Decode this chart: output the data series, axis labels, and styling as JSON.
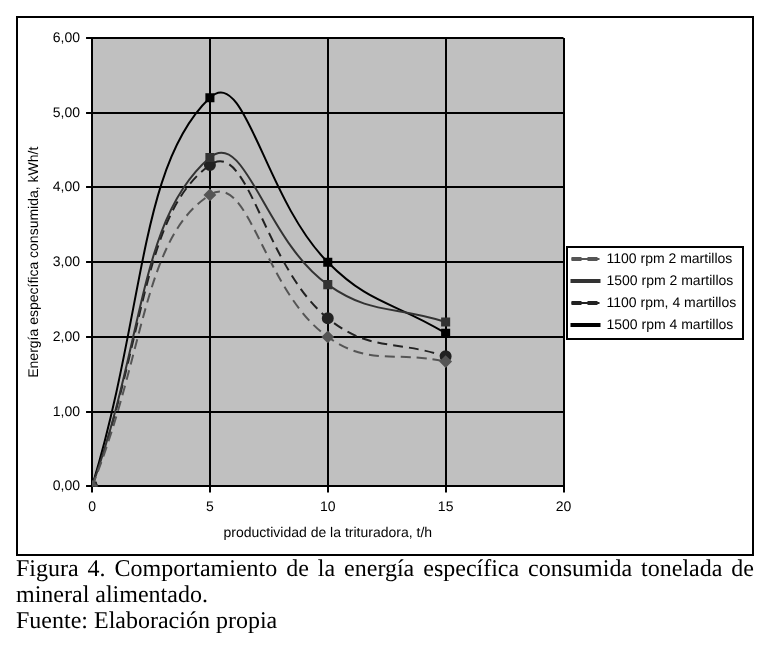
{
  "chart_data": {
    "type": "line",
    "title": "Figura 4. Comportamiento de la energía específica consumida tonelada de mineral alimentado.",
    "annotations": [
      "Fuente: Elaboración propia"
    ],
    "xlabel": "productividad de la trituradora, t/h",
    "ylabel": "Energía específica consumida, kWh/t",
    "x": [
      0,
      5,
      10,
      15
    ],
    "series": [
      {
        "name": "1100 rpm 2 martillos",
        "color": "#555555",
        "values": [
          0,
          3.9,
          2.0,
          1.67
        ],
        "marker": "diamond",
        "line_style": "dashed"
      },
      {
        "name": "1500 rpm 2 martillos",
        "color": "#333333",
        "values": [
          0,
          4.4,
          2.7,
          2.2
        ],
        "marker": "square",
        "line_style": "solid"
      },
      {
        "name": "1100 rpm, 4 martillos",
        "color": "#222222",
        "values": [
          0,
          4.3,
          2.25,
          1.74
        ],
        "marker": "circle",
        "line_style": "dashed"
      },
      {
        "name": "1500 rpm 4 martillos",
        "color": "#000000",
        "values": [
          0,
          5.2,
          3.0,
          2.05
        ],
        "marker": "square",
        "line_style": "solid"
      }
    ],
    "xlim": [
      0,
      20
    ],
    "xticks": [
      0,
      5,
      10,
      15,
      20
    ],
    "ylim": [
      0,
      6
    ],
    "yticks": [
      {
        "value": 0,
        "label": "0,00"
      },
      {
        "value": 1,
        "label": "1,00"
      },
      {
        "value": 2,
        "label": "2,00"
      },
      {
        "value": 3,
        "label": "3,00"
      },
      {
        "value": 4,
        "label": "4,00"
      },
      {
        "value": 5,
        "label": "5,00"
      },
      {
        "value": 6,
        "label": "6,00"
      }
    ],
    "grid": true,
    "legend": "right"
  }
}
